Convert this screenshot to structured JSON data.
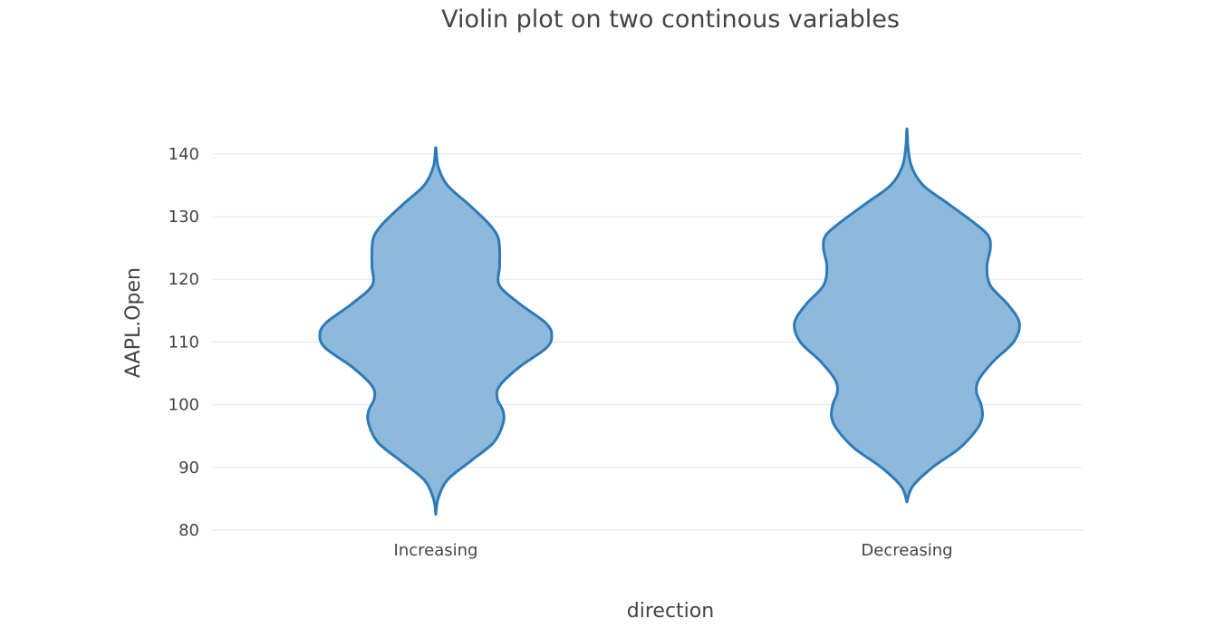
{
  "chart_data": {
    "type": "violin",
    "title": "Violin plot on two continous variables",
    "xlabel": "direction",
    "ylabel": "AAPL.Open",
    "categories": [
      "Increasing",
      "Decreasing"
    ],
    "ylim": [
      80,
      145
    ],
    "yticks": [
      80,
      90,
      100,
      110,
      120,
      130,
      140
    ],
    "grid": true,
    "colors": {
      "fill": "#8db9da",
      "line": "#2e7ab8",
      "grid": "#e6e6e6",
      "text": "#444444"
    },
    "series": [
      {
        "category": "Increasing",
        "y_min": 82.5,
        "y_max": 141,
        "density": [
          [
            82.5,
            0.0
          ],
          [
            85,
            0.02
          ],
          [
            88,
            0.1
          ],
          [
            91,
            0.3
          ],
          [
            94,
            0.5
          ],
          [
            97,
            0.58
          ],
          [
            99,
            0.58
          ],
          [
            101,
            0.53
          ],
          [
            103,
            0.55
          ],
          [
            106,
            0.72
          ],
          [
            109,
            0.95
          ],
          [
            111,
            1.0
          ],
          [
            113,
            0.95
          ],
          [
            116,
            0.73
          ],
          [
            119,
            0.55
          ],
          [
            122,
            0.55
          ],
          [
            125,
            0.55
          ],
          [
            127,
            0.53
          ],
          [
            129,
            0.45
          ],
          [
            132,
            0.28
          ],
          [
            135,
            0.1
          ],
          [
            138,
            0.02
          ],
          [
            141,
            0.0
          ]
        ]
      },
      {
        "category": "Decreasing",
        "y_min": 84.5,
        "y_max": 144,
        "density": [
          [
            84.5,
            0.0
          ],
          [
            87,
            0.05
          ],
          [
            90,
            0.22
          ],
          [
            93,
            0.45
          ],
          [
            96,
            0.6
          ],
          [
            98,
            0.65
          ],
          [
            100,
            0.64
          ],
          [
            102,
            0.6
          ],
          [
            104,
            0.62
          ],
          [
            107,
            0.75
          ],
          [
            110,
            0.92
          ],
          [
            113,
            0.97
          ],
          [
            116,
            0.87
          ],
          [
            119,
            0.72
          ],
          [
            122,
            0.69
          ],
          [
            125,
            0.72
          ],
          [
            127,
            0.7
          ],
          [
            129,
            0.58
          ],
          [
            132,
            0.36
          ],
          [
            135,
            0.14
          ],
          [
            138,
            0.04
          ],
          [
            141,
            0.01
          ],
          [
            144,
            0.0
          ]
        ]
      }
    ]
  }
}
